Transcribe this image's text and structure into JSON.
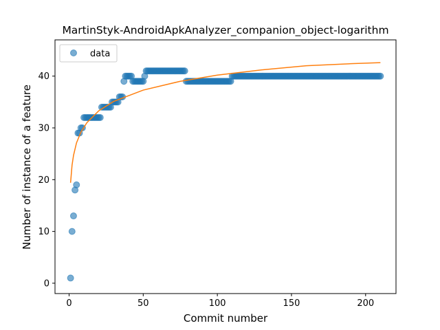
{
  "chart_data": {
    "type": "scatter",
    "title": "MartinStyk-AndroidApkAnalyzer_companion_object-logarithm",
    "xlabel": "Commit number",
    "ylabel": "Number of instance of a feature",
    "xlim": [
      -9.5,
      220.5
    ],
    "ylim": [
      -2,
      47
    ],
    "xticks": [
      0,
      50,
      100,
      150,
      200
    ],
    "yticks": [
      0,
      10,
      20,
      30,
      40
    ],
    "grid": false,
    "legend": {
      "position": "top-left",
      "entries": [
        "data"
      ]
    },
    "colors": {
      "data": "#1f77b4",
      "fit": "#ff7f0e"
    },
    "series": [
      {
        "name": "data",
        "kind": "points",
        "segments": [
          [
            1,
            1,
            1
          ],
          [
            2,
            2,
            10
          ],
          [
            3,
            3,
            13
          ],
          [
            4,
            4,
            18
          ],
          [
            5,
            5,
            19
          ],
          [
            6,
            7,
            29
          ],
          [
            8,
            9,
            30
          ],
          [
            10,
            21,
            32
          ],
          [
            22,
            28,
            34
          ],
          [
            29,
            33,
            35
          ],
          [
            34,
            36,
            36
          ],
          [
            37,
            37,
            39
          ],
          [
            38,
            42,
            40
          ],
          [
            43,
            50,
            39
          ],
          [
            51,
            51,
            40
          ],
          [
            52,
            78,
            41
          ],
          [
            79,
            109,
            39
          ],
          [
            110,
            210,
            40
          ]
        ]
      },
      {
        "name": "fit",
        "kind": "curve",
        "model": "logarithm",
        "points": [
          [
            1,
            19.4
          ],
          [
            2,
            22.8
          ],
          [
            3,
            24.7
          ],
          [
            5,
            27.1
          ],
          [
            8,
            29.2
          ],
          [
            12,
            31.0
          ],
          [
            20,
            33.3
          ],
          [
            30,
            35.1
          ],
          [
            50,
            37.3
          ],
          [
            75,
            39.0
          ],
          [
            100,
            40.2
          ],
          [
            130,
            41.2
          ],
          [
            160,
            42.0
          ],
          [
            190,
            42.4
          ],
          [
            210,
            42.6
          ]
        ]
      }
    ]
  }
}
